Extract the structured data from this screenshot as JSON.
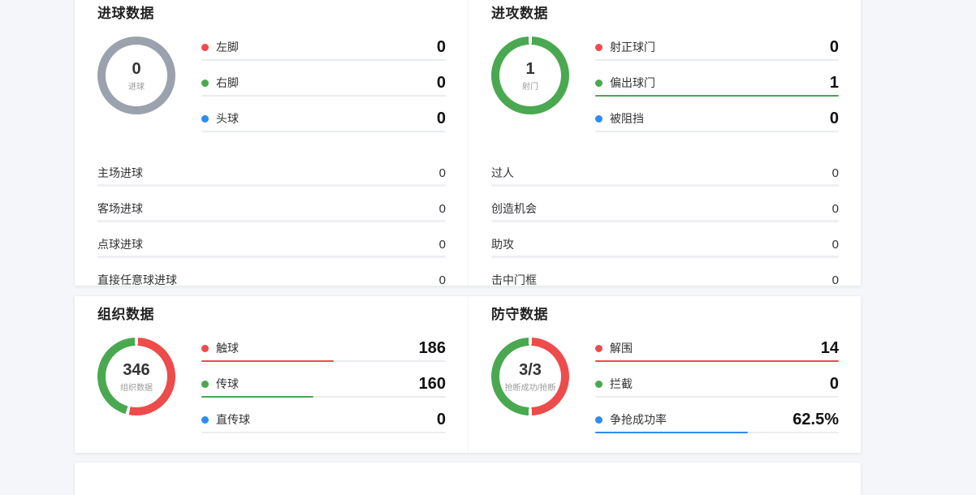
{
  "colors": {
    "red": "#ee4b4b",
    "green": "#4aa850",
    "blue": "#2d8cf0",
    "gray": "#9ba1ad",
    "track": "#e9ecf0",
    "background": "#f4f6fa"
  },
  "panels": [
    {
      "title": "进球数据",
      "donut": {
        "center_value": "0",
        "center_label": "进球",
        "gap_deg": 0,
        "segments": [
          {
            "color": "gray",
            "pct": 100
          }
        ]
      },
      "legend": [
        {
          "color": "red",
          "label": "左脚",
          "value": "0",
          "bar_pct": 0
        },
        {
          "color": "green",
          "label": "右脚",
          "value": "0",
          "bar_pct": 0
        },
        {
          "color": "blue",
          "label": "头球",
          "value": "0",
          "bar_pct": 0
        }
      ],
      "stats": [
        {
          "label": "主场进球",
          "value": "0",
          "bar_pct": 0
        },
        {
          "label": "客场进球",
          "value": "0",
          "bar_pct": 0
        },
        {
          "label": "点球进球",
          "value": "0",
          "bar_pct": 0
        },
        {
          "label": "直接任意球进球",
          "value": "0",
          "bar_pct": 0
        }
      ]
    },
    {
      "title": "进攻数据",
      "donut": {
        "center_value": "1",
        "center_label": "射门",
        "gap_deg": 5,
        "segments": [
          {
            "color": "green",
            "pct": 100
          }
        ]
      },
      "legend": [
        {
          "color": "red",
          "label": "射正球门",
          "value": "0",
          "bar_pct": 0
        },
        {
          "color": "green",
          "label": "偏出球门",
          "value": "1",
          "bar_pct": 100
        },
        {
          "color": "blue",
          "label": "被阻挡",
          "value": "0",
          "bar_pct": 0
        }
      ],
      "stats": [
        {
          "label": "过人",
          "value": "0",
          "bar_pct": 0
        },
        {
          "label": "创造机会",
          "value": "0",
          "bar_pct": 0
        },
        {
          "label": "助攻",
          "value": "0",
          "bar_pct": 0
        },
        {
          "label": "击中门框",
          "value": "0",
          "bar_pct": 0
        }
      ]
    },
    {
      "title": "组织数据",
      "donut": {
        "center_value": "346",
        "center_label": "组织数据",
        "gap_deg": 5,
        "segments": [
          {
            "color": "red",
            "pct": 53.8
          },
          {
            "color": "green",
            "pct": 46.2
          }
        ]
      },
      "legend": [
        {
          "color": "red",
          "label": "触球",
          "value": "186",
          "bar_pct": 54
        },
        {
          "color": "green",
          "label": "传球",
          "value": "160",
          "bar_pct": 46
        },
        {
          "color": "blue",
          "label": "直传球",
          "value": "0",
          "bar_pct": 0
        }
      ],
      "stats": []
    },
    {
      "title": "防守数据",
      "donut": {
        "center_value": "3/3",
        "center_label": "抢断成功/抢断",
        "gap_deg": 5,
        "segments": [
          {
            "color": "red",
            "pct": 50
          },
          {
            "color": "green",
            "pct": 50
          }
        ]
      },
      "legend": [
        {
          "color": "red",
          "label": "解围",
          "value": "14",
          "bar_pct": 100
        },
        {
          "color": "green",
          "label": "拦截",
          "value": "0",
          "bar_pct": 0
        },
        {
          "color": "blue",
          "label": "争抢成功率",
          "value": "62.5%",
          "bar_pct": 62.5
        }
      ],
      "stats": []
    }
  ],
  "chart_data": [
    {
      "type": "pie",
      "title": "进球数据",
      "categories": [
        "左脚",
        "右脚",
        "头球"
      ],
      "values": [
        0,
        0,
        0
      ],
      "center": "0 进球"
    },
    {
      "type": "pie",
      "title": "进攻数据",
      "categories": [
        "射正球门",
        "偏出球门",
        "被阻挡"
      ],
      "values": [
        0,
        1,
        0
      ],
      "center": "1 射门"
    },
    {
      "type": "pie",
      "title": "组织数据",
      "categories": [
        "触球",
        "传球",
        "直传球"
      ],
      "values": [
        186,
        160,
        0
      ],
      "center": "346 组织数据"
    },
    {
      "type": "pie",
      "title": "防守数据",
      "categories": [
        "解围",
        "拦截",
        "争抢成功率"
      ],
      "values": [
        14,
        0,
        62.5
      ],
      "center": "3/3 抢断成功/抢断"
    }
  ]
}
